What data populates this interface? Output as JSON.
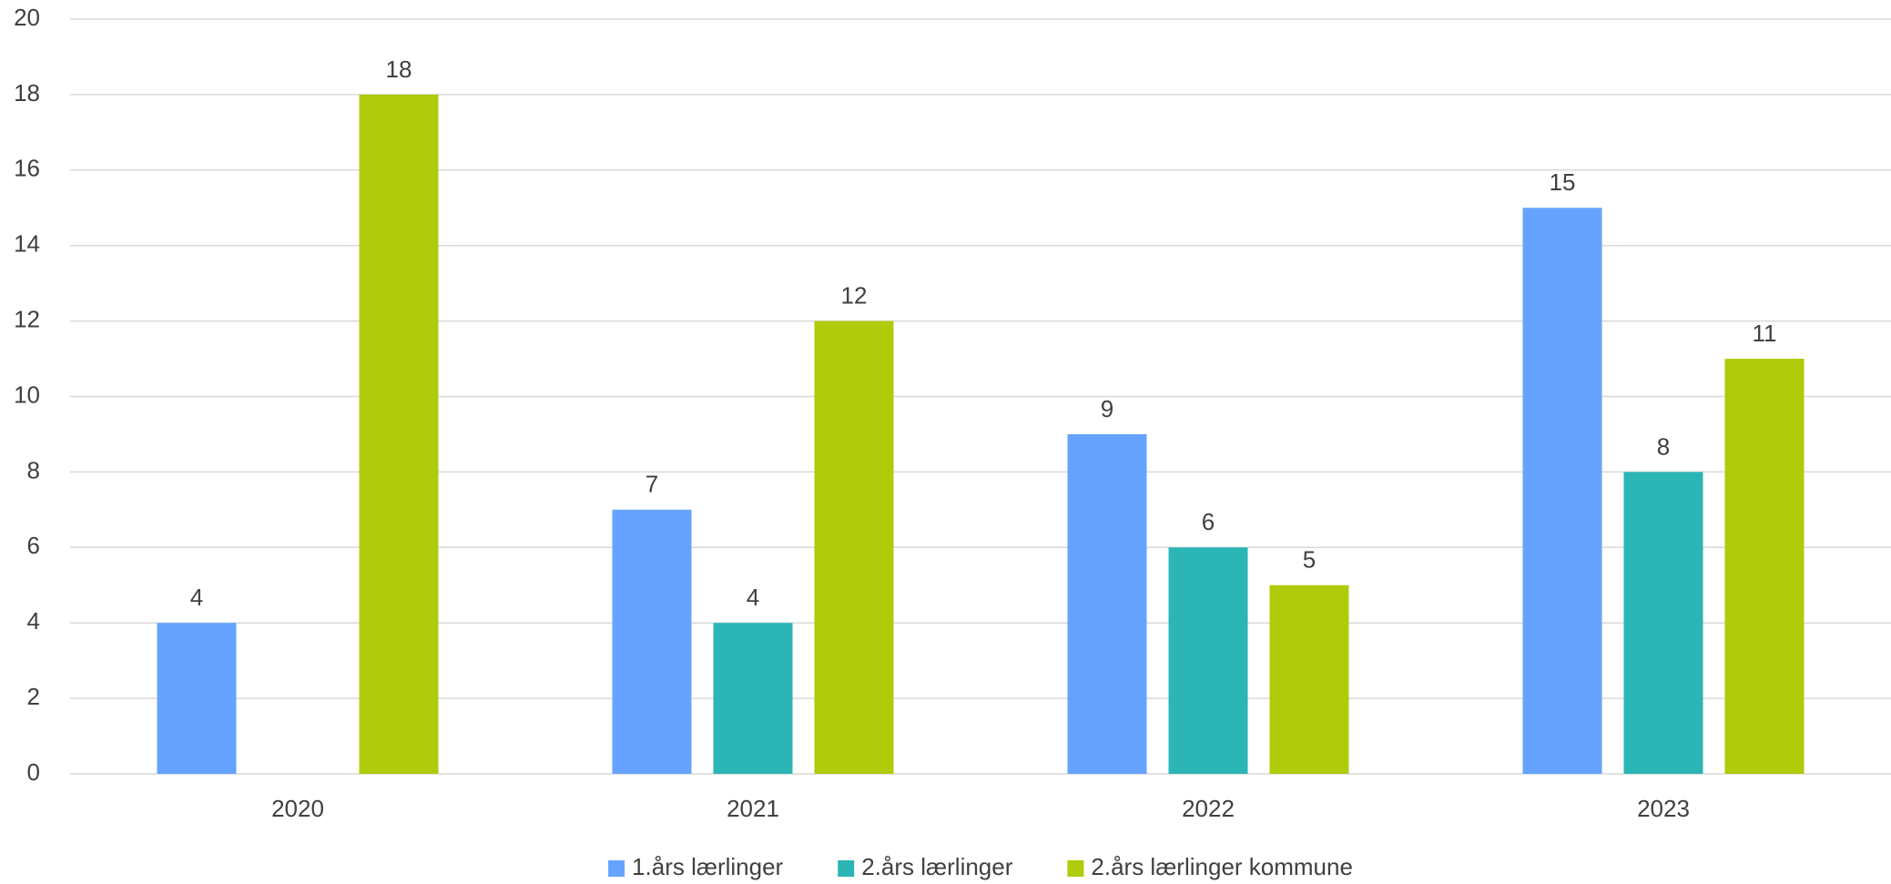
{
  "chart_data": {
    "type": "bar",
    "categories": [
      "2020",
      "2021",
      "2022",
      "2023"
    ],
    "series": [
      {
        "name": "1.års lærlinger",
        "color": "#66a3ff",
        "values": [
          4,
          7,
          9,
          15
        ]
      },
      {
        "name": "2.års lærlinger",
        "color": "#2bb5b5",
        "values": [
          null,
          4,
          6,
          8
        ]
      },
      {
        "name": "2.års lærlinger kommune",
        "color": "#afcb0a",
        "values": [
          18,
          12,
          5,
          11
        ]
      }
    ],
    "ylim": [
      0,
      20
    ],
    "yticks": [
      0,
      2,
      4,
      6,
      8,
      10,
      12,
      14,
      16,
      18,
      20
    ],
    "grid": true,
    "legend": "bottom"
  }
}
